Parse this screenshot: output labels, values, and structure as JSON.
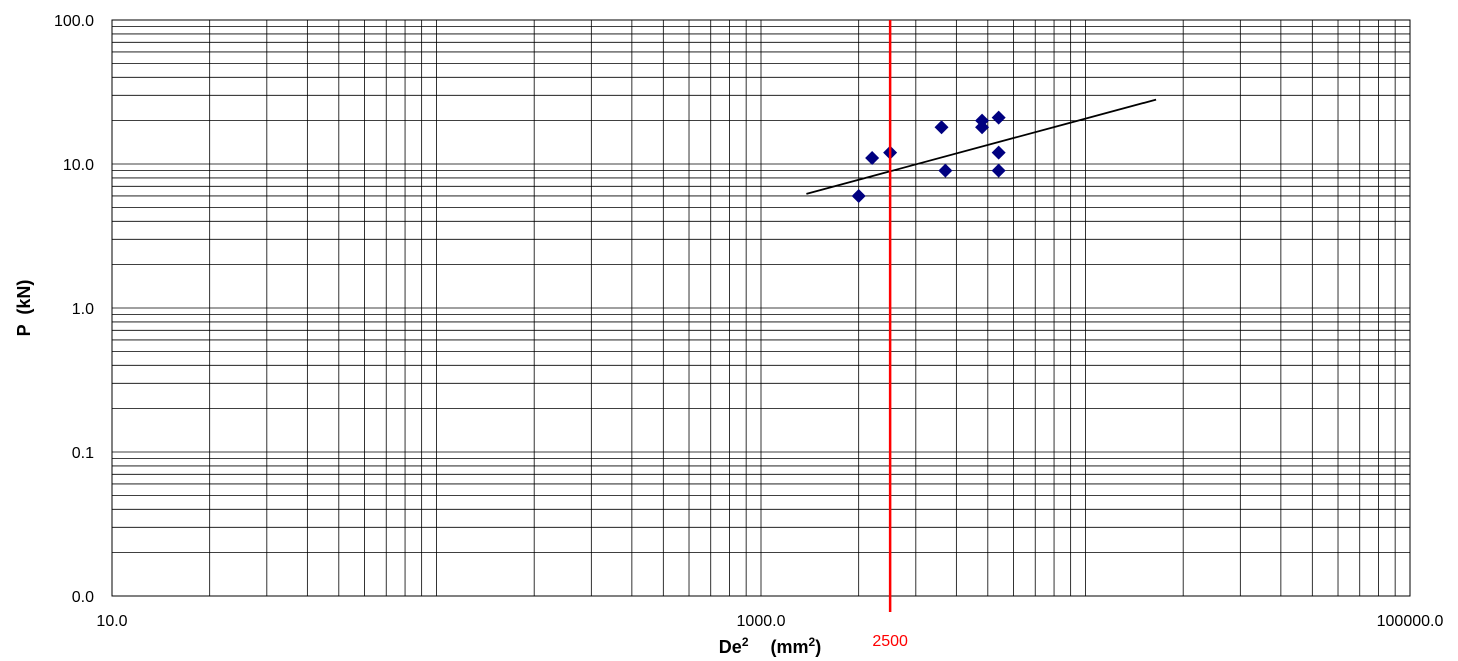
{
  "chart_data": {
    "type": "scatter",
    "xscale": "log",
    "yscale": "log",
    "xlim": [
      10,
      100000
    ],
    "ylim": [
      0.01,
      100
    ],
    "xlabel_main": "De",
    "xlabel_sup": "2",
    "xlabel_unit_prefix": "(mm",
    "xlabel_unit_sup": "2",
    "xlabel_unit_suffix": ")",
    "ylabel": "P  (kN)",
    "grid": "major and minor",
    "x_tick_labels": [
      {
        "value": 10,
        "label": "10.0"
      },
      {
        "value": 1000,
        "label": "1000.0"
      },
      {
        "value": 100000,
        "label": "100000.0"
      }
    ],
    "y_tick_labels": [
      {
        "value": 100,
        "label": "100.0"
      },
      {
        "value": 10,
        "label": "10.0"
      },
      {
        "value": 1,
        "label": "1.0"
      },
      {
        "value": 0.1,
        "label": "0.1"
      },
      {
        "value": 0.01,
        "label": "0.0"
      }
    ],
    "series": [
      {
        "marker": "diamond",
        "color": "#000080",
        "points": [
          {
            "x": 2000,
            "y": 6
          },
          {
            "x": 2200,
            "y": 11
          },
          {
            "x": 2500,
            "y": 12
          },
          {
            "x": 3600,
            "y": 18
          },
          {
            "x": 3700,
            "y": 9
          },
          {
            "x": 4800,
            "y": 20
          },
          {
            "x": 4800,
            "y": 18
          },
          {
            "x": 5400,
            "y": 21
          },
          {
            "x": 5400,
            "y": 12
          },
          {
            "x": 5400,
            "y": 9
          }
        ]
      }
    ],
    "trendline": {
      "color": "#000000",
      "points": [
        {
          "x": 1380,
          "y": 6.2
        },
        {
          "x": 16500,
          "y": 28
        }
      ]
    },
    "reference_line": {
      "x": 2500,
      "label": "2500",
      "color": "#ff0000"
    }
  }
}
